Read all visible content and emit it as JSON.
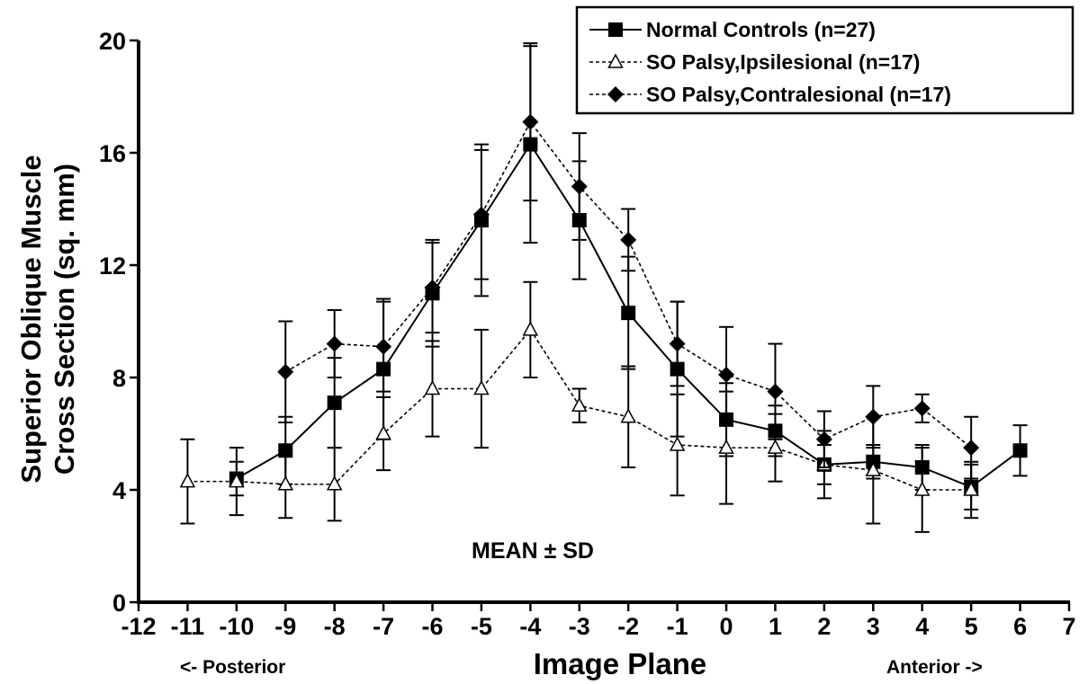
{
  "chart_data": {
    "type": "line",
    "ylabel_line1": "Superior Oblique Muscle",
    "ylabel_line2": "Cross Section (sq. mm)",
    "xlabel": "Image Plane",
    "xlim": [
      -12,
      7
    ],
    "ylim": [
      0,
      20
    ],
    "x_ticks": [
      -12,
      -11,
      -10,
      -9,
      -8,
      -7,
      -6,
      -5,
      -4,
      -3,
      -2,
      -1,
      0,
      1,
      2,
      3,
      4,
      5,
      6,
      7
    ],
    "y_ticks": [
      0,
      4,
      8,
      12,
      16,
      20
    ],
    "x_tick_labels": [
      "-12",
      "-11",
      "-10",
      "-9",
      "-8",
      "-7",
      "-6",
      "-5",
      "-4",
      "-3",
      "-2",
      "-1",
      "0",
      "1",
      "2",
      "3",
      "4",
      "5",
      "6",
      "7"
    ],
    "y_tick_labels": [
      "0",
      "4",
      "8",
      "12",
      "16",
      "20"
    ],
    "grid": false,
    "legend_position": "top-right",
    "annotations": {
      "stat_label": "MEAN ± SD",
      "posterior_label": "<-  Posterior",
      "anterior_label": "Anterior  ->"
    },
    "series": [
      {
        "name": "Normal Controls (n=27)",
        "marker": "square",
        "line_style": "solid",
        "points": [
          {
            "x": -10,
            "y": 4.4,
            "sd": 0.6
          },
          {
            "x": -9,
            "y": 5.4,
            "sd": 1.2
          },
          {
            "x": -8,
            "y": 7.1,
            "sd": 1.6
          },
          {
            "x": -7,
            "y": 8.3,
            "sd": 2.5
          },
          {
            "x": -6,
            "y": 11.0,
            "sd": 1.9
          },
          {
            "x": -5,
            "y": 13.6,
            "sd": 2.7
          },
          {
            "x": -4,
            "y": 16.3,
            "sd": 3.5
          },
          {
            "x": -3,
            "y": 13.6,
            "sd": 2.1
          },
          {
            "x": -2,
            "y": 10.3,
            "sd": 2.0
          },
          {
            "x": -1,
            "y": 8.3,
            "sd": 2.4
          },
          {
            "x": 0,
            "y": 6.5,
            "sd": 1.3
          },
          {
            "x": 1,
            "y": 6.1,
            "sd": 0.9
          },
          {
            "x": 2,
            "y": 4.9,
            "sd": 0.7
          },
          {
            "x": 3,
            "y": 5.0,
            "sd": 0.6
          },
          {
            "x": 4,
            "y": 4.8,
            "sd": 0.8
          },
          {
            "x": 5,
            "y": 4.1,
            "sd": 0.8
          },
          {
            "x": 6,
            "y": 5.4,
            "sd": 0.9
          }
        ]
      },
      {
        "name": "SO Palsy,Ipsilesional (n=17)",
        "marker": "open-triangle",
        "line_style": "dashed",
        "points": [
          {
            "x": -11,
            "y": 4.3,
            "sd": 1.5
          },
          {
            "x": -10,
            "y": 4.3,
            "sd": 1.2
          },
          {
            "x": -9,
            "y": 4.2,
            "sd": 1.2
          },
          {
            "x": -8,
            "y": 4.2,
            "sd": 1.3
          },
          {
            "x": -7,
            "y": 6.0,
            "sd": 1.3
          },
          {
            "x": -6,
            "y": 7.6,
            "sd": 1.7
          },
          {
            "x": -5,
            "y": 7.6,
            "sd": 2.1
          },
          {
            "x": -4,
            "y": 9.7,
            "sd": 1.7
          },
          {
            "x": -3,
            "y": 7.0,
            "sd": 0.6
          },
          {
            "x": -2,
            "y": 6.6,
            "sd": 1.8
          },
          {
            "x": -1,
            "y": 5.6,
            "sd": 1.8
          },
          {
            "x": 0,
            "y": 5.5,
            "sd": 2.0
          },
          {
            "x": 1,
            "y": 5.5,
            "sd": 1.2
          },
          {
            "x": 2,
            "y": 4.9,
            "sd": 1.2
          },
          {
            "x": 3,
            "y": 4.7,
            "sd": 1.9
          },
          {
            "x": 4,
            "y": 4.0,
            "sd": 1.5
          },
          {
            "x": 5,
            "y": 4.0,
            "sd": 1.0
          }
        ]
      },
      {
        "name": "SO Palsy,Contralesional (n=17)",
        "marker": "diamond",
        "line_style": "dashed",
        "points": [
          {
            "x": -9,
            "y": 8.2,
            "sd": 1.8
          },
          {
            "x": -8,
            "y": 9.2,
            "sd": 1.2
          },
          {
            "x": -7,
            "y": 9.1,
            "sd": 1.6
          },
          {
            "x": -6,
            "y": 11.2,
            "sd": 1.6
          },
          {
            "x": -5,
            "y": 13.8,
            "sd": 2.3
          },
          {
            "x": -4,
            "y": 17.1,
            "sd": 2.8
          },
          {
            "x": -3,
            "y": 14.8,
            "sd": 1.9
          },
          {
            "x": -2,
            "y": 12.9,
            "sd": 1.1
          },
          {
            "x": -1,
            "y": 9.2,
            "sd": 1.5
          },
          {
            "x": 0,
            "y": 8.1,
            "sd": 1.7
          },
          {
            "x": 1,
            "y": 7.5,
            "sd": 1.7
          },
          {
            "x": 2,
            "y": 5.8,
            "sd": 1.0
          },
          {
            "x": 3,
            "y": 6.6,
            "sd": 1.1
          },
          {
            "x": 4,
            "y": 6.9,
            "sd": 0.5
          },
          {
            "x": 5,
            "y": 5.5,
            "sd": 1.1
          }
        ]
      }
    ]
  }
}
